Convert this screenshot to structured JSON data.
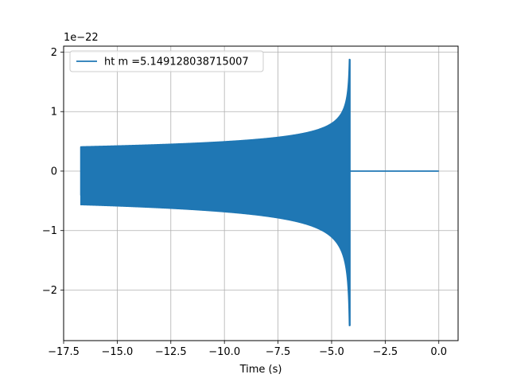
{
  "chart_data": {
    "type": "line",
    "title": "",
    "xlabel": "Time (s)",
    "ylabel": "",
    "y_scale_factor_label": "1e−22",
    "xlim": [
      -17.5,
      0.9
    ],
    "ylim": [
      -2.85,
      2.1
    ],
    "xticks": [
      -17.5,
      -15.0,
      -12.5,
      -10.0,
      -7.5,
      -5.0,
      -2.5,
      0.0
    ],
    "xtick_labels": [
      "−17.5",
      "−15.0",
      "−12.5",
      "−10.0",
      "−7.5",
      "−5.0",
      "−2.5",
      "0.0"
    ],
    "yticks": [
      -2,
      -1,
      0,
      1,
      2
    ],
    "ytick_labels": [
      "−2",
      "−1",
      "0",
      "1",
      "2"
    ],
    "grid": true,
    "legend_position": "top-left",
    "series": [
      {
        "name": "ht m =5.149128038715007",
        "color": "#1f77b4",
        "t_start": -16.7,
        "t_merger": -4.15,
        "t_end": 0.0,
        "envelope_start": 0.41,
        "envelope_peak_pos": 1.88,
        "envelope_peak_neg": -2.6,
        "post_merger_value": 0.0
      }
    ]
  }
}
